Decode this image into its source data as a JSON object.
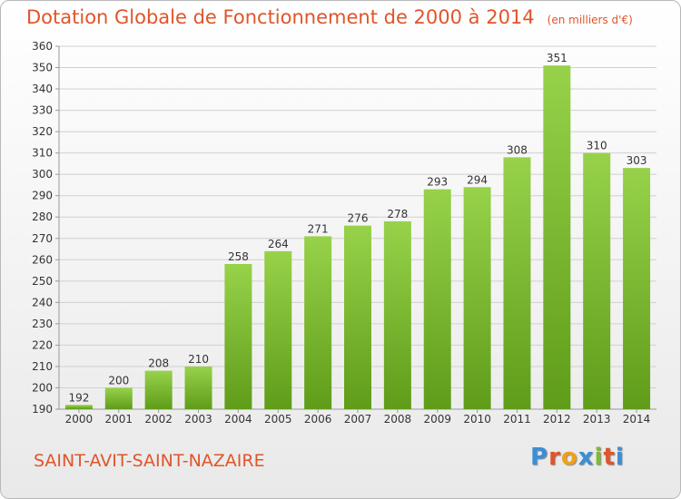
{
  "chart_data": {
    "type": "bar",
    "title": "Dotation Globale de Fonctionnement de 2000 à 2014",
    "subtitle": "(en milliers d'€)",
    "categories": [
      "2000",
      "2001",
      "2002",
      "2003",
      "2004",
      "2005",
      "2006",
      "2007",
      "2008",
      "2009",
      "2010",
      "2011",
      "2012",
      "2013",
      "2014"
    ],
    "values": [
      192,
      200,
      208,
      210,
      258,
      264,
      271,
      276,
      278,
      293,
      294,
      308,
      351,
      310,
      303
    ],
    "ylim": [
      190,
      360
    ],
    "yticks": [
      190,
      200,
      210,
      220,
      230,
      240,
      250,
      260,
      270,
      280,
      290,
      300,
      310,
      320,
      330,
      340,
      350,
      360
    ],
    "grid": true,
    "bar_color": "#7cbc2e",
    "text_color": "#e0552b"
  },
  "footer": {
    "commune": "SAINT-AVIT-SAINT-NAZAIRE",
    "logo_text": "Proxiti",
    "logo_colors": [
      "#3a8fd6",
      "#e0552b",
      "#f0a01c",
      "#3a8fd6",
      "#7cbc2e",
      "#e0552b",
      "#3a8fd6"
    ]
  }
}
